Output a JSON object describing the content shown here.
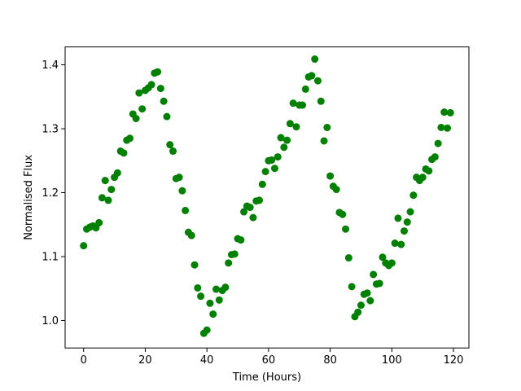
{
  "chart_data": {
    "type": "scatter",
    "title": "",
    "xlabel": "Time (Hours)",
    "ylabel": "Normalised Flux",
    "xlim": [
      -6,
      125
    ],
    "ylim": [
      0.957,
      1.428
    ],
    "xticks": [
      0,
      20,
      40,
      60,
      80,
      100,
      120
    ],
    "xtick_labels": [
      "0",
      "20",
      "40",
      "60",
      "80",
      "100",
      "120"
    ],
    "yticks": [
      1.0,
      1.1,
      1.2,
      1.3,
      1.4
    ],
    "ytick_labels": [
      "1.0",
      "1.1",
      "1.2",
      "1.3",
      "1.4"
    ],
    "grid": false,
    "marker_color": "#008000",
    "series": [
      {
        "x": [
          0,
          1,
          2,
          3,
          4,
          5,
          6,
          7,
          8,
          9,
          10,
          11,
          12,
          13,
          14,
          15,
          16,
          17,
          18,
          19,
          20,
          21,
          22,
          23,
          24,
          25,
          26,
          27,
          28,
          29,
          30,
          31,
          32,
          33,
          34,
          35,
          36,
          37,
          38,
          39,
          40,
          41,
          42,
          43,
          44,
          45,
          46,
          47,
          48,
          49,
          50,
          51,
          52,
          53,
          54,
          55,
          56,
          57,
          58,
          59,
          60,
          61,
          62,
          63,
          64,
          65,
          66,
          67,
          68,
          69,
          70,
          71,
          72,
          73,
          74,
          75,
          76,
          77,
          78,
          79,
          80,
          81,
          82,
          83,
          84,
          85,
          86,
          87,
          88,
          89,
          90,
          91,
          92,
          93,
          94,
          95,
          96,
          97,
          98,
          99,
          100,
          101,
          102,
          103,
          104,
          105,
          106,
          107,
          108,
          109,
          110,
          111,
          112,
          113,
          114,
          115,
          116,
          117,
          118,
          119
        ],
        "y": [
          1.117,
          1.143,
          1.146,
          1.148,
          1.145,
          1.153,
          1.192,
          1.219,
          1.188,
          1.205,
          1.224,
          1.231,
          1.265,
          1.262,
          1.282,
          1.285,
          1.323,
          1.316,
          1.356,
          1.331,
          1.36,
          1.364,
          1.369,
          1.387,
          1.389,
          1.363,
          1.343,
          1.319,
          1.275,
          1.265,
          1.222,
          1.224,
          1.203,
          1.172,
          1.138,
          1.133,
          1.087,
          1.051,
          1.038,
          0.98,
          0.985,
          1.027,
          1.01,
          1.049,
          1.032,
          1.047,
          1.052,
          1.09,
          1.103,
          1.104,
          1.128,
          1.126,
          1.17,
          1.179,
          1.177,
          1.161,
          1.187,
          1.188,
          1.213,
          1.233,
          1.25,
          1.251,
          1.238,
          1.256,
          1.286,
          1.271,
          1.282,
          1.308,
          1.34,
          1.303,
          1.337,
          1.337,
          1.362,
          1.381,
          1.383,
          1.409,
          1.375,
          1.343,
          1.281,
          1.302,
          1.226,
          1.21,
          1.205,
          1.169,
          1.166,
          1.143,
          1.098,
          1.053,
          1.006,
          1.013,
          1.024,
          1.041,
          1.043,
          1.031,
          1.072,
          1.057,
          1.058,
          1.099,
          1.09,
          1.086,
          1.09,
          1.121,
          1.16,
          1.119,
          1.14,
          1.154,
          1.17,
          1.196,
          1.224,
          1.219,
          1.224,
          1.237,
          1.234,
          1.252,
          1.256,
          1.277,
          1.302,
          1.326,
          1.301,
          1.325
        ]
      }
    ]
  }
}
